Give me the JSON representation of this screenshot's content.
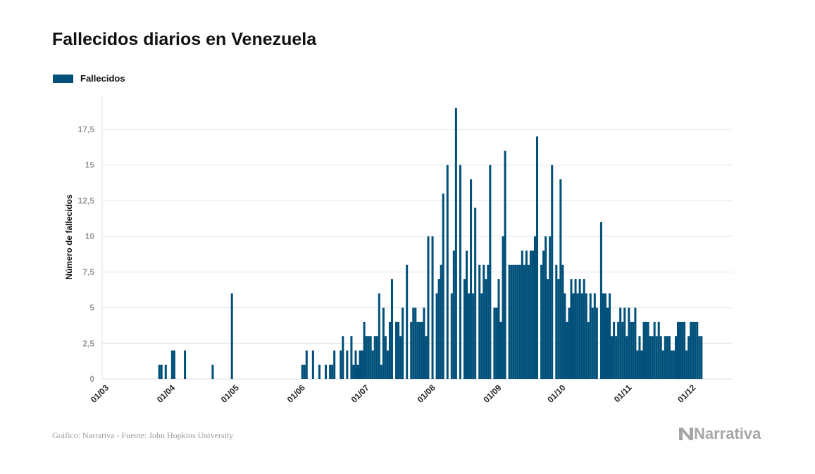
{
  "header": {
    "title": "Fallecidos diarios en Venezuela"
  },
  "footer": {
    "source": "Gráfico: Narrativa - Fuente: John Hopkins University",
    "logo_text": "Narrativa"
  },
  "colors": {
    "bar": "#00507a",
    "grid": "#e6e6e6",
    "axis_text": "#999999"
  },
  "chart_data": {
    "type": "bar",
    "title": "Fallecidos diarios en Venezuela",
    "xlabel": "",
    "ylabel": "Número de fallecidos",
    "legend": {
      "position": "top-left",
      "entries": [
        "Fallecidos"
      ]
    },
    "start_date": "2020-03-01",
    "ylim": [
      0,
      19.5
    ],
    "yticks": [
      0,
      2.5,
      5,
      7.5,
      10,
      12.5,
      15,
      17.5
    ],
    "ytick_labels": [
      "0",
      "2,5",
      "5",
      "7,5",
      "10",
      "12,5",
      "15",
      "17,5"
    ],
    "xticks": [
      {
        "day": 0,
        "label": "01/03"
      },
      {
        "day": 31,
        "label": "01/04"
      },
      {
        "day": 61,
        "label": "01/05"
      },
      {
        "day": 92,
        "label": "01/06"
      },
      {
        "day": 122,
        "label": "01/07"
      },
      {
        "day": 153,
        "label": "01/08"
      },
      {
        "day": 184,
        "label": "01/09"
      },
      {
        "day": 214,
        "label": "01/10"
      },
      {
        "day": 245,
        "label": "01/11"
      },
      {
        "day": 275,
        "label": "01/12"
      }
    ],
    "grid": true,
    "series": [
      {
        "name": "Fallecidos",
        "values": [
          0,
          0,
          0,
          0,
          0,
          0,
          0,
          0,
          0,
          0,
          0,
          0,
          0,
          0,
          0,
          0,
          0,
          0,
          0,
          0,
          0,
          0,
          0,
          1,
          1,
          0,
          1,
          0,
          0,
          2,
          2,
          0,
          0,
          0,
          0,
          2,
          0,
          0,
          0,
          0,
          0,
          0,
          0,
          0,
          0,
          0,
          0,
          0,
          1,
          0,
          0,
          0,
          0,
          0,
          0,
          0,
          0,
          6,
          0,
          0,
          0,
          0,
          0,
          0,
          0,
          0,
          0,
          0,
          0,
          0,
          0,
          0,
          0,
          0,
          0,
          0,
          0,
          0,
          0,
          0,
          0,
          0,
          0,
          0,
          0,
          0,
          0,
          0,
          0,
          0,
          1,
          1,
          2,
          0,
          0,
          2,
          0,
          0,
          1,
          0,
          0,
          1,
          0,
          1,
          1,
          2,
          0,
          0,
          2,
          3,
          0,
          2,
          0,
          3,
          1,
          2,
          1,
          2,
          2,
          4,
          3,
          3,
          3,
          2,
          3,
          3,
          6,
          1,
          5,
          3,
          2,
          4,
          7,
          0,
          4,
          4,
          3,
          5,
          0,
          8,
          0,
          4,
          5,
          5,
          4,
          4,
          4,
          5,
          3,
          10,
          0,
          10,
          0,
          6,
          7,
          8,
          13,
          0,
          15,
          0,
          6,
          9,
          19,
          0,
          15,
          0,
          7,
          9,
          6,
          14,
          6,
          12,
          0,
          8,
          6,
          8,
          7,
          8,
          15,
          0,
          5,
          5,
          7,
          4,
          10,
          16,
          0,
          8,
          8,
          8,
          8,
          8,
          8,
          9,
          8,
          9,
          8,
          9,
          9,
          10,
          17,
          0,
          8,
          9,
          10,
          7,
          10,
          15,
          0,
          8,
          7,
          14,
          8,
          6,
          4,
          5,
          7,
          6,
          7,
          6,
          7,
          6,
          7,
          6,
          4,
          6,
          5,
          6,
          5,
          0,
          11,
          6,
          6,
          5,
          6,
          3,
          4,
          3,
          4,
          5,
          4,
          5,
          3,
          5,
          4,
          4,
          5,
          2,
          3,
          2,
          4,
          4,
          4,
          3,
          3,
          4,
          3,
          4,
          3,
          2,
          3,
          3,
          3,
          2,
          2,
          3,
          4,
          4,
          4,
          4,
          2,
          3,
          4,
          4,
          4,
          4,
          3,
          3
        ]
      }
    ]
  }
}
